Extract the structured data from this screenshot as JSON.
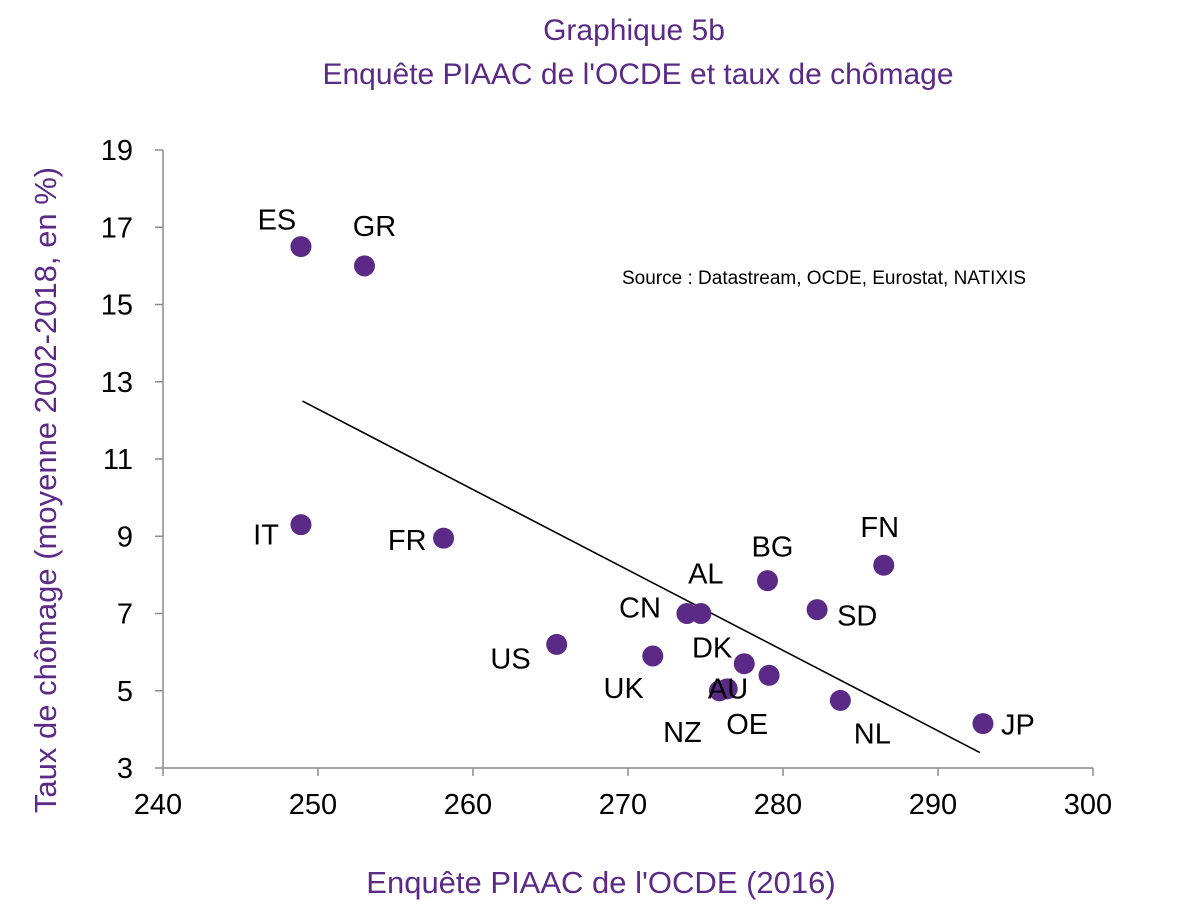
{
  "chart_data": {
    "type": "scatter",
    "title": "Graphique 5b",
    "subtitle": "Enquête PIAAC de l'OCDE et taux de chômage",
    "xlabel": "Enquête PIAAC de l'OCDE (2016)",
    "ylabel": "Taux de chômage (moyenne 2002-2018, en %)",
    "source": "Source : Datastream, OCDE, Eurostat, NATIXIS",
    "xlim": [
      240,
      300
    ],
    "ylim": [
      3,
      19
    ],
    "xticks": [
      240,
      250,
      260,
      270,
      280,
      290,
      300
    ],
    "yticks": [
      3,
      5,
      7,
      9,
      11,
      13,
      15,
      17,
      19
    ],
    "grid": false,
    "legend": "none",
    "marker_color": "#5b2a86",
    "trendline": {
      "x": [
        249,
        292.7
      ],
      "y": [
        12.5,
        3.4
      ]
    },
    "points": [
      {
        "label": "ES",
        "x": 248.9,
        "y": 16.5
      },
      {
        "label": "GR",
        "x": 253.0,
        "y": 16.0
      },
      {
        "label": "IT",
        "x": 248.9,
        "y": 9.3
      },
      {
        "label": "FR",
        "x": 258.1,
        "y": 8.95
      },
      {
        "label": "US",
        "x": 265.4,
        "y": 6.2
      },
      {
        "label": "UK",
        "x": 271.6,
        "y": 5.9
      },
      {
        "label": "CN",
        "x": 273.8,
        "y": 7.0
      },
      {
        "label": "AL",
        "x": 274.7,
        "y": 7.0
      },
      {
        "label": "DK",
        "x": 277.5,
        "y": 5.7
      },
      {
        "label": "NZ",
        "x": 275.9,
        "y": 5.0
      },
      {
        "label": "OE",
        "x": 276.4,
        "y": 5.05
      },
      {
        "label": "BG",
        "x": 279.0,
        "y": 7.85
      },
      {
        "label": "SD",
        "x": 282.2,
        "y": 7.1
      },
      {
        "label": "AU",
        "x": 279.1,
        "y": 5.4
      },
      {
        "label": "FN",
        "x": 286.5,
        "y": 8.25
      },
      {
        "label": "NL",
        "x": 283.7,
        "y": 4.75
      },
      {
        "label": "JP",
        "x": 292.9,
        "y": 4.15
      }
    ]
  }
}
